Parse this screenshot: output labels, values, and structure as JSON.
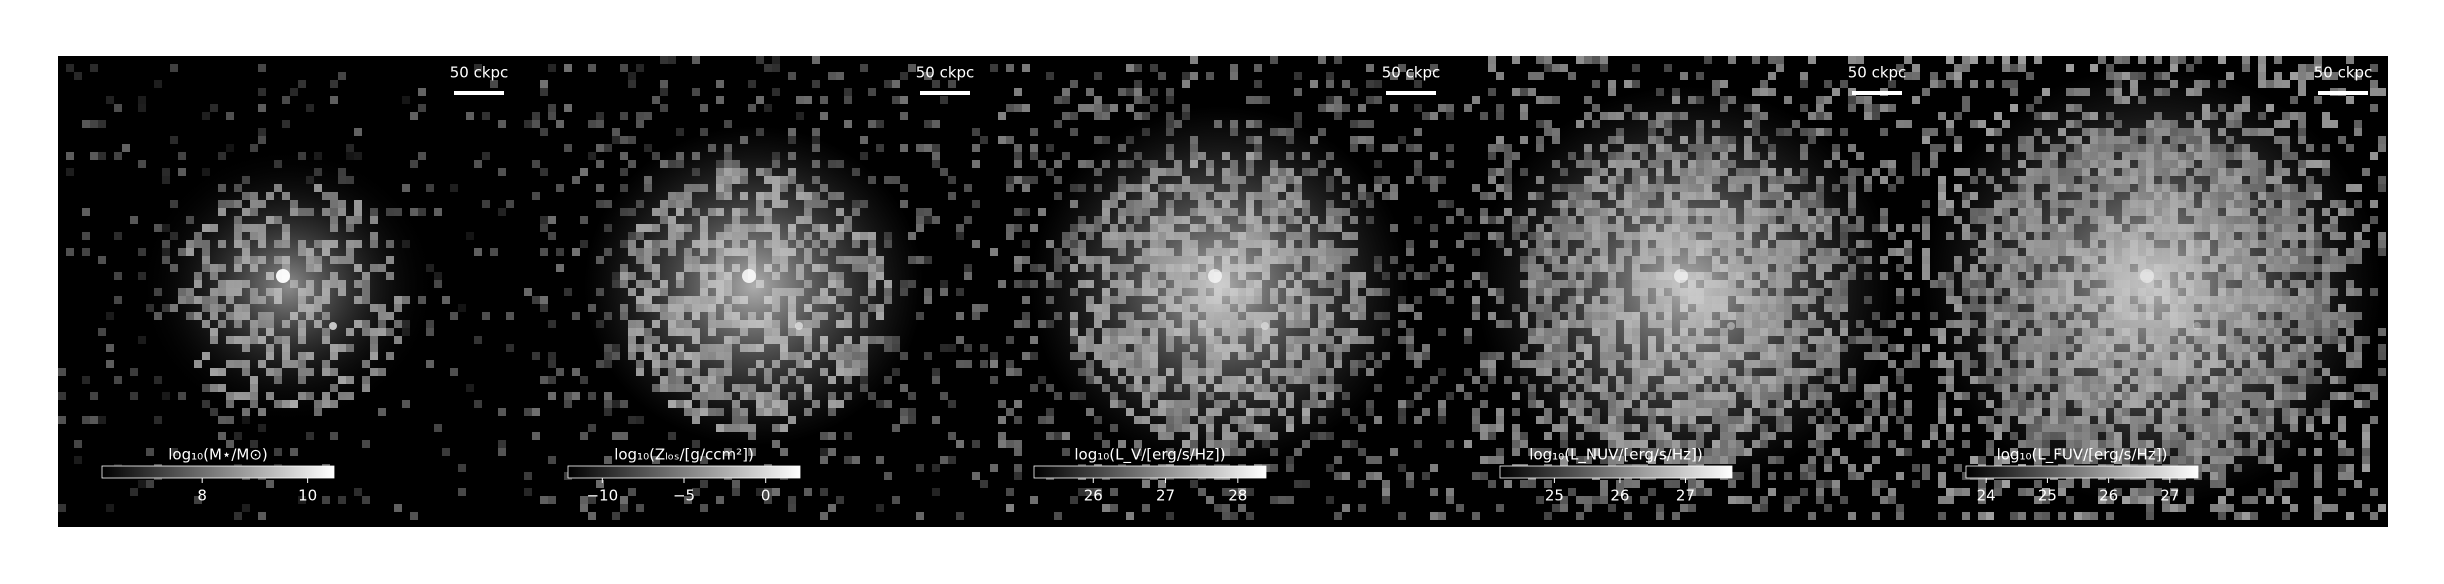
{
  "panels": [
    {
      "scale_bar": "50 ckpc",
      "colorbar": {
        "label": "log₁₀(M⋆/M⊙)",
        "lim": [
          6.1,
          10.5
        ],
        "ticks": [
          8,
          10
        ]
      }
    },
    {
      "scale_bar": "50 ckpc",
      "colorbar": {
        "label": "log₁₀(Zₗₒₛ/[g/ccm²])",
        "lim": [
          -12.1,
          2.1
        ],
        "ticks": [
          {
            "value": -10,
            "label": "−10"
          },
          {
            "value": -5,
            "label": "−5"
          },
          0
        ]
      }
    },
    {
      "scale_bar": "50 ckpc",
      "colorbar": {
        "label": "log₁₀(L_V/[erg/s/Hz])",
        "lim": [
          25.18,
          28.39
        ],
        "ticks": [
          26,
          27,
          28
        ]
      }
    },
    {
      "scale_bar": "50 ckpc",
      "colorbar": {
        "label": "log₁₀(L_NUV/[erg/s/Hz])",
        "lim": [
          24.17,
          27.71
        ],
        "ticks": [
          25,
          26,
          27
        ]
      }
    },
    {
      "scale_bar": "50 ckpc",
      "colorbar": {
        "label": "log₁₀(L_FUV/[erg/s/Hz])",
        "lim": [
          23.67,
          27.46
        ],
        "ticks": [
          24,
          25,
          26,
          27
        ]
      }
    }
  ]
}
